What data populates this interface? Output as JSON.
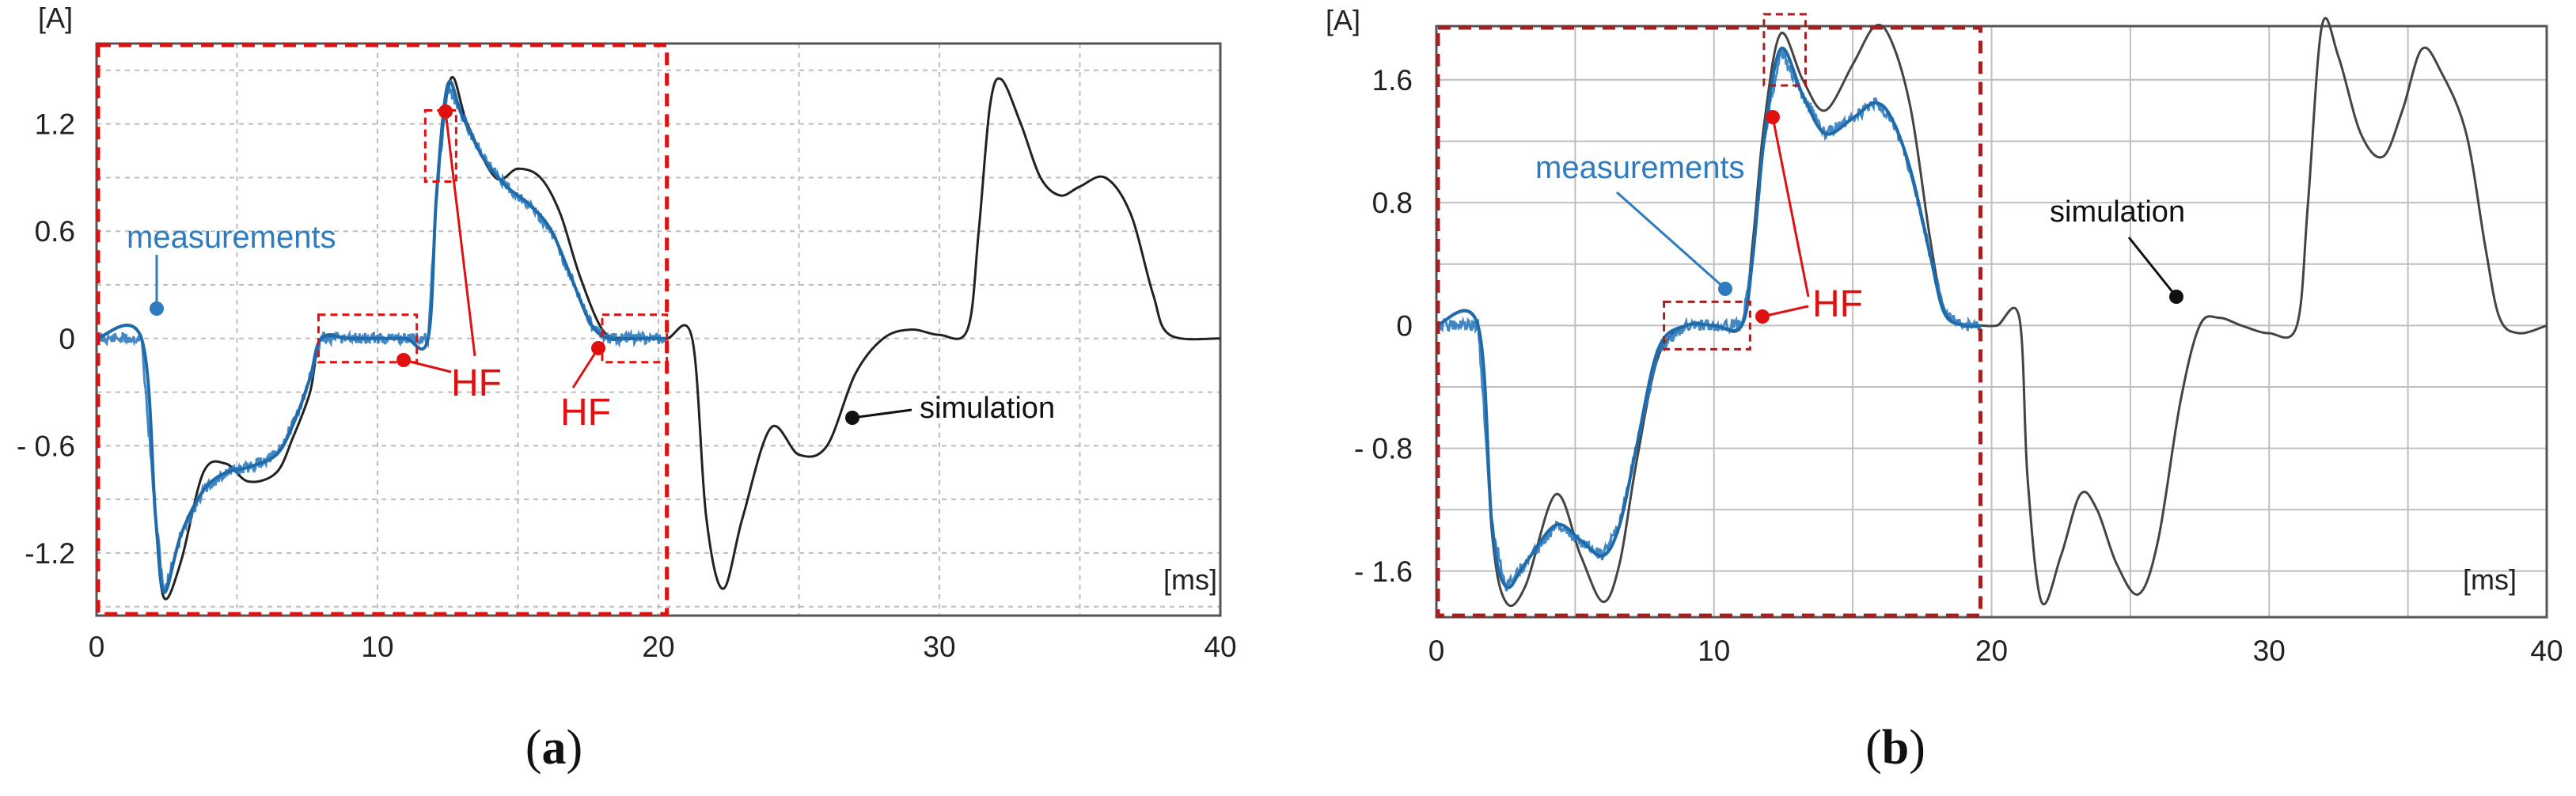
{
  "chart_data": [
    {
      "type": "line",
      "panel": "a",
      "caption_open": "(",
      "caption_letter": "a",
      "caption_close": ")",
      "xlabel": "[ms]",
      "ylabel": "[A]",
      "xlim": [
        0,
        40
      ],
      "ylim": [
        -1.55,
        1.65
      ],
      "x_ticks": [
        0,
        10,
        20,
        30,
        40
      ],
      "x_tick_labels": [
        "0",
        "10",
        "20",
        "30",
        "40"
      ],
      "y_ticks": [
        1.2,
        0.6,
        0,
        -0.6,
        -1.2
      ],
      "y_tick_labels": [
        "1.2",
        "0.6",
        "0",
        "- 0.6",
        "-1.2"
      ],
      "highlight_range_ms": [
        0,
        20.3
      ],
      "series": [
        {
          "name": "simulation",
          "color": "#222222",
          "x": [
            0,
            1.6,
            2.1,
            2.4,
            3.0,
            3.8,
            4.6,
            5.4,
            6.4,
            7.0,
            7.6,
            8.0,
            9.0,
            10.0,
            11.0,
            11.8,
            12.1,
            12.6,
            13.2,
            14.2,
            15.0,
            15.8,
            16.5,
            17.2,
            18.0,
            18.7,
            19.5,
            20.3,
            21.2,
            21.7,
            22.3,
            23.0,
            24.0,
            25.0,
            26.0,
            27.0,
            28.0,
            29.0,
            30.0,
            31.0,
            31.4,
            31.8,
            32.2,
            32.9,
            33.6,
            34.3,
            35.0,
            35.9,
            36.8,
            37.6,
            38.2,
            40.0
          ],
          "values": [
            0,
            0,
            -1.0,
            -1.45,
            -1.25,
            -0.75,
            -0.7,
            -0.8,
            -0.75,
            -0.55,
            -0.3,
            0,
            0,
            0,
            0,
            0,
            0.8,
            1.45,
            1.2,
            0.9,
            0.95,
            0.9,
            0.7,
            0.35,
            0.05,
            0,
            0,
            0,
            0,
            -1.0,
            -1.4,
            -1.0,
            -0.5,
            -0.65,
            -0.6,
            -0.2,
            0,
            0.05,
            0.02,
            0.05,
            0.6,
            1.3,
            1.45,
            1.2,
            0.9,
            0.8,
            0.85,
            0.9,
            0.7,
            0.25,
            0.02,
            0
          ]
        },
        {
          "name": "measurements",
          "color": "#2f7bbf",
          "x": [
            0,
            1.6,
            2.1,
            2.4,
            3.0,
            3.8,
            4.6,
            5.4,
            6.4,
            7.0,
            7.6,
            8.0,
            9.0,
            10.0,
            11.0,
            11.8,
            12.1,
            12.5,
            13.0,
            13.8,
            14.6,
            15.4,
            16.2,
            17.0,
            17.6,
            18.2,
            19.0,
            20.3
          ],
          "values": [
            0,
            0,
            -1.0,
            -1.42,
            -1.1,
            -0.85,
            -0.75,
            -0.72,
            -0.65,
            -0.48,
            -0.22,
            0,
            0,
            0,
            0,
            0,
            0.8,
            1.42,
            1.25,
            1.0,
            0.85,
            0.75,
            0.6,
            0.3,
            0.08,
            0,
            0,
            0
          ]
        }
      ],
      "annotations": [
        {
          "text": "measurements",
          "color": "#2f7bbf"
        },
        {
          "text": "HF",
          "color": "#e01010"
        },
        {
          "text": "HF",
          "color": "#e01010"
        },
        {
          "text": "simulation",
          "color": "#111111"
        }
      ],
      "hf_boxes_ms": [
        [
          7.9,
          11.4
        ],
        [
          11.7,
          12.8
        ],
        [
          18.0,
          20.3
        ]
      ]
    },
    {
      "type": "line",
      "panel": "b",
      "caption_open": "(",
      "caption_letter": "b",
      "caption_close": ")",
      "xlabel": "[ms]",
      "ylabel": "[A]",
      "xlim": [
        0,
        40
      ],
      "ylim": [
        -1.9,
        1.95
      ],
      "x_ticks": [
        0,
        10,
        20,
        30,
        40
      ],
      "x_tick_labels": [
        "0",
        "10",
        "20",
        "30",
        "40"
      ],
      "y_ticks": [
        1.6,
        0.8,
        0,
        -0.8,
        -1.6
      ],
      "y_tick_labels": [
        "1.6",
        "0.8",
        "0",
        "- 0.8",
        "- 1.6"
      ],
      "highlight_range_ms": [
        0,
        19.6
      ],
      "series": [
        {
          "name": "simulation",
          "color": "#444444",
          "x": [
            0,
            1.5,
            2.0,
            2.5,
            3.2,
            4.3,
            5.2,
            6.0,
            6.6,
            7.2,
            8.0,
            9.0,
            10.0,
            11.0,
            11.4,
            11.8,
            12.4,
            13.2,
            14.0,
            15.0,
            15.8,
            16.4,
            17.1,
            17.8,
            18.3,
            19.0,
            19.6,
            20.2,
            21.0,
            21.3,
            21.8,
            22.5,
            23.2,
            23.8,
            24.5,
            25.3,
            26.0,
            26.8,
            27.5,
            28.2,
            29.0,
            30.0,
            31.0,
            31.4,
            31.9,
            32.5,
            33.3,
            34.1,
            34.8,
            35.5,
            36.2,
            37.1,
            37.8,
            38.3,
            39.0,
            40.0
          ],
          "values": [
            0,
            0,
            -1.35,
            -1.8,
            -1.7,
            -1.1,
            -1.5,
            -1.8,
            -1.55,
            -0.9,
            -0.2,
            0,
            0,
            0,
            0.55,
            1.3,
            1.9,
            1.6,
            1.4,
            1.7,
            1.95,
            1.85,
            1.4,
            0.55,
            0.1,
            0,
            0,
            0,
            0.05,
            -1.0,
            -1.8,
            -1.5,
            -1.1,
            -1.2,
            -1.55,
            -1.75,
            -1.4,
            -0.5,
            0,
            0.05,
            0,
            -0.05,
            0,
            0.8,
            1.95,
            1.75,
            1.25,
            1.1,
            1.4,
            1.8,
            1.65,
            1.25,
            0.5,
            0.05,
            -0.05,
            0
          ]
        },
        {
          "name": "measurements",
          "color": "#2f7bbf",
          "x": [
            0,
            1.5,
            2.0,
            2.5,
            3.2,
            4.3,
            5.2,
            6.0,
            6.6,
            7.2,
            8.0,
            9.0,
            10.0,
            11.0,
            11.4,
            11.8,
            12.4,
            13.2,
            14.0,
            15.0,
            15.8,
            16.4,
            17.1,
            17.8,
            18.3,
            19.0,
            19.6
          ],
          "values": [
            0,
            0,
            -1.3,
            -1.7,
            -1.55,
            -1.3,
            -1.4,
            -1.5,
            -1.3,
            -0.8,
            -0.15,
            0,
            0,
            0,
            0.45,
            1.2,
            1.8,
            1.5,
            1.25,
            1.35,
            1.45,
            1.35,
            1.0,
            0.45,
            0.08,
            0,
            0
          ]
        }
      ],
      "annotations": [
        {
          "text": "measurements",
          "color": "#2f7bbf"
        },
        {
          "text": "HF",
          "color": "#e01010"
        },
        {
          "text": "simulation",
          "color": "#111111"
        }
      ],
      "hf_boxes_ms": [
        [
          8.2,
          11.3
        ],
        [
          11.8,
          13.3
        ]
      ]
    }
  ]
}
